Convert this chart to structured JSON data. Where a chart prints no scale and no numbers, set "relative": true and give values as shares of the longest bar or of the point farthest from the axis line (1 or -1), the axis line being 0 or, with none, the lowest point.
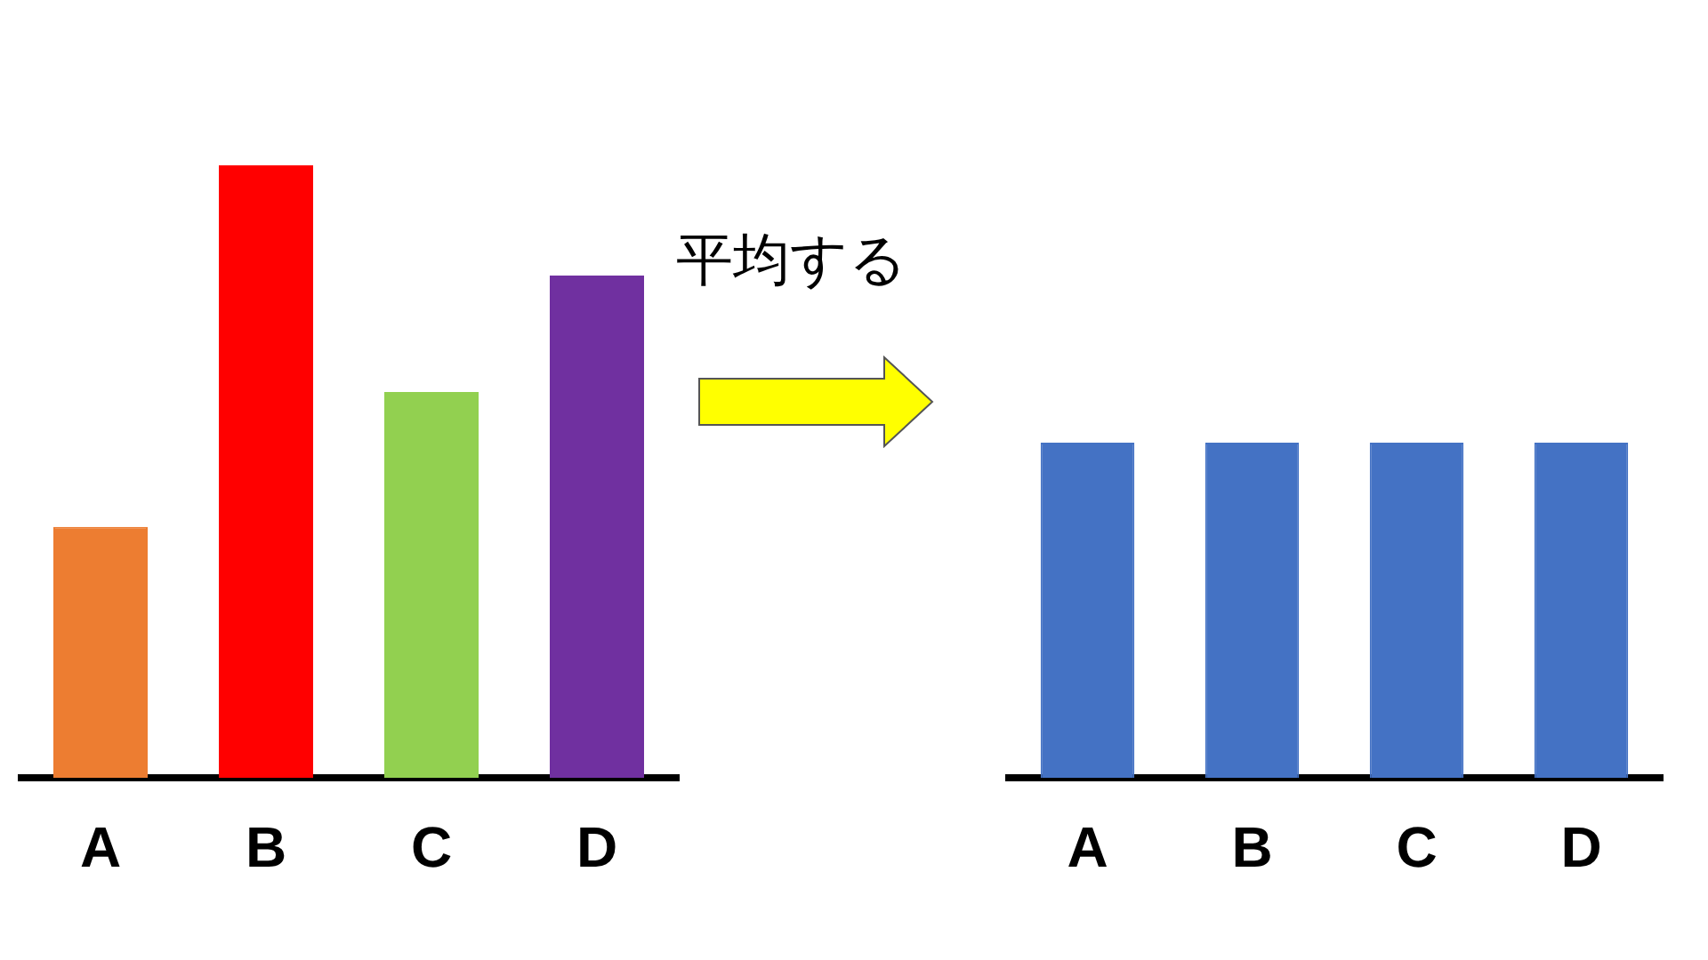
{
  "chart_data": [
    {
      "type": "bar",
      "relative": true,
      "categories": [
        "A",
        "B",
        "C",
        "D"
      ],
      "values": [
        0.41,
        1,
        0.63,
        0.82
      ],
      "colors": [
        "#ed7d31",
        "#ff0000",
        "#92d050",
        "#7030a0"
      ],
      "annotations": [
        "平均する"
      ]
    },
    {
      "type": "bar",
      "relative": true,
      "categories": [
        "A",
        "B",
        "C",
        "D"
      ],
      "values": [
        1,
        1,
        1,
        1
      ],
      "color": "#4472c4"
    }
  ]
}
